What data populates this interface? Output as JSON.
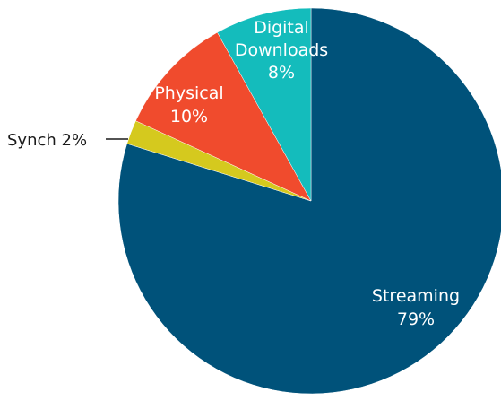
{
  "chart_data": {
    "type": "pie",
    "title": "",
    "start_angle_deg": 0,
    "direction": "clockwise",
    "slices": [
      {
        "name": "Streaming",
        "value": 79,
        "label": "Streaming",
        "value_label": "79%",
        "color": "#00527a",
        "label_color": "#ffffff"
      },
      {
        "name": "Synch",
        "value": 2,
        "label": "Synch 2%",
        "value_label": "",
        "color": "#d5c91e",
        "label_color": "#1a1a1a"
      },
      {
        "name": "Physical",
        "value": 10,
        "label": "Physical",
        "value_label": "10%",
        "color": "#f04b2d",
        "label_color": "#ffffff"
      },
      {
        "name": "Digital Downloads",
        "value": 8,
        "label": "Digital Downloads",
        "value_label": "8%",
        "label_lines": [
          "Digital",
          "Downloads"
        ],
        "color": "#14bcbc",
        "label_color": "#ffffff"
      }
    ]
  }
}
